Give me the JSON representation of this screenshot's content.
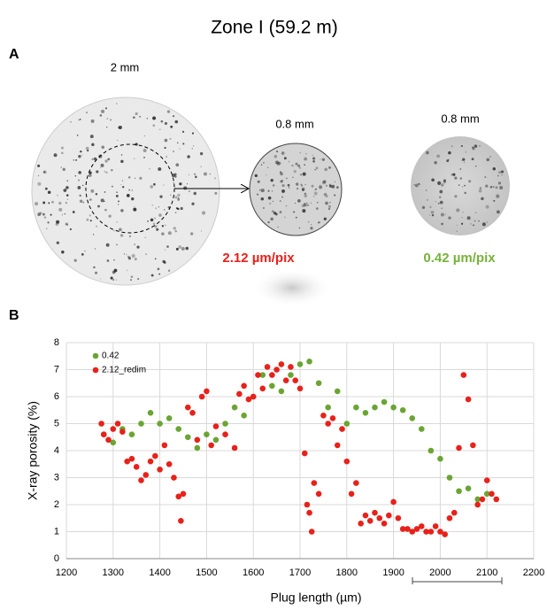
{
  "title": "Zone I (59.2 m)",
  "panel_a": {
    "label": "A",
    "scales": [
      "2 mm",
      "0.8 mm",
      "0.8 mm"
    ],
    "resolutions": [
      "2.12 µm/pix",
      "0.42 µm/pix"
    ]
  },
  "panel_b": {
    "label": "B"
  },
  "chart_data": {
    "type": "scatter",
    "x_label": "Plug length (µm)",
    "y_label": "X-ray porosity (%)",
    "xlim": [
      1200,
      2200
    ],
    "ylim": [
      0,
      8
    ],
    "xticks": [
      1200,
      1300,
      1400,
      1500,
      1600,
      1700,
      1800,
      1900,
      2000,
      2100,
      2200
    ],
    "yticks": [
      0,
      1,
      2,
      3,
      4,
      5,
      6,
      7,
      8
    ],
    "grid": true,
    "legend": "upper left",
    "series": [
      {
        "name": "0.42",
        "color": "#6aa534",
        "x": [
          1280,
          1300,
          1320,
          1340,
          1360,
          1380,
          1400,
          1420,
          1440,
          1460,
          1480,
          1500,
          1520,
          1540,
          1560,
          1580,
          1600,
          1620,
          1640,
          1660,
          1680,
          1700,
          1720,
          1740,
          1760,
          1780,
          1800,
          1820,
          1840,
          1860,
          1880,
          1900,
          1920,
          1940,
          1960,
          1980,
          2000,
          2020,
          2040,
          2060,
          2080,
          2100
        ],
        "values": [
          4.6,
          4.3,
          4.8,
          4.6,
          5.0,
          5.4,
          5.0,
          5.2,
          4.8,
          4.5,
          4.1,
          4.6,
          4.4,
          5.0,
          5.6,
          5.3,
          6.0,
          6.8,
          6.4,
          6.2,
          6.8,
          7.2,
          7.3,
          6.5,
          5.6,
          6.2,
          5.0,
          5.6,
          5.4,
          5.6,
          5.8,
          5.6,
          5.5,
          5.2,
          4.8,
          4.0,
          3.7,
          3.0,
          2.5,
          2.6,
          2.2,
          2.4
        ]
      },
      {
        "name": "2.12_redim",
        "color": "#e8211a",
        "x": [
          1275,
          1280,
          1290,
          1300,
          1310,
          1320,
          1330,
          1340,
          1350,
          1360,
          1370,
          1380,
          1390,
          1400,
          1410,
          1420,
          1430,
          1440,
          1445,
          1450,
          1460,
          1470,
          1480,
          1490,
          1500,
          1510,
          1520,
          1540,
          1560,
          1570,
          1580,
          1590,
          1600,
          1610,
          1620,
          1630,
          1640,
          1650,
          1660,
          1670,
          1680,
          1690,
          1700,
          1710,
          1715,
          1720,
          1725,
          1730,
          1740,
          1750,
          1760,
          1770,
          1780,
          1790,
          1800,
          1810,
          1820,
          1830,
          1840,
          1850,
          1860,
          1870,
          1880,
          1890,
          1900,
          1910,
          1920,
          1930,
          1940,
          1950,
          1960,
          1970,
          1980,
          1990,
          2000,
          2010,
          2020,
          2030,
          2040,
          2050,
          2060,
          2070,
          2080,
          2090,
          2100,
          2110,
          2120
        ],
        "values": [
          5.0,
          4.6,
          4.4,
          4.8,
          5.0,
          4.7,
          3.6,
          3.7,
          3.4,
          2.9,
          3.1,
          3.6,
          3.8,
          3.3,
          4.2,
          3.5,
          3.0,
          2.3,
          1.4,
          2.4,
          5.6,
          5.4,
          4.4,
          6.0,
          6.2,
          4.2,
          4.9,
          4.6,
          4.1,
          6.1,
          6.4,
          5.9,
          6.0,
          6.8,
          6.3,
          7.1,
          6.8,
          7.0,
          7.2,
          6.6,
          7.1,
          6.6,
          6.3,
          3.9,
          2.0,
          1.7,
          1.0,
          2.8,
          2.4,
          5.3,
          5.0,
          5.2,
          4.2,
          4.8,
          3.6,
          2.4,
          2.8,
          1.3,
          1.6,
          1.4,
          1.7,
          1.5,
          1.3,
          1.6,
          2.1,
          1.5,
          1.1,
          1.1,
          1.0,
          1.1,
          1.2,
          1.0,
          1.0,
          1.2,
          1.0,
          0.9,
          1.5,
          1.7,
          4.1,
          6.8,
          5.9,
          4.2,
          2.0,
          2.2,
          2.9,
          2.4,
          2.2
        ]
      }
    ]
  }
}
